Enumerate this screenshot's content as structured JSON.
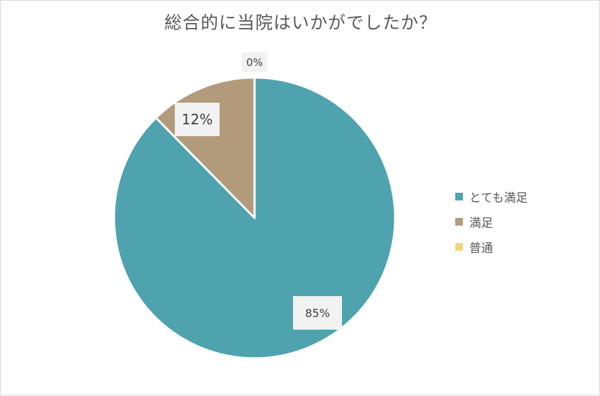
{
  "chart_data": {
    "type": "pie",
    "title": "総合的に当院はいかがでしたか？",
    "slices": [
      {
        "label": "とても満足",
        "value": 85,
        "data_label": "85%",
        "color": "#4ea3ae"
      },
      {
        "label": "満足",
        "value": 12,
        "data_label": "12%",
        "color": "#b19b7b"
      },
      {
        "label": "普通",
        "value": 0,
        "data_label": "0%",
        "color": "#f5d77b"
      }
    ],
    "legend_position": "right"
  }
}
